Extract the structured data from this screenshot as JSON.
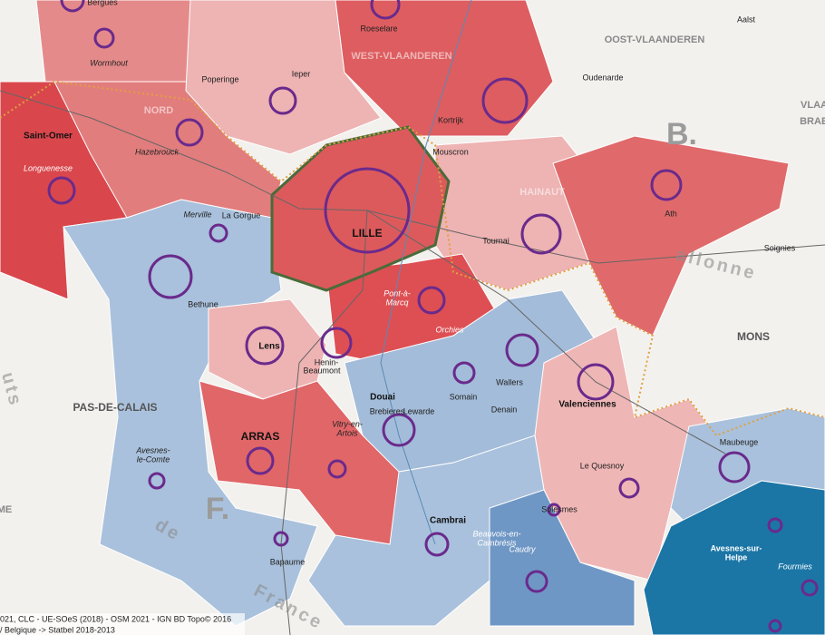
{
  "places": [
    "Bergues",
    "Wormhout",
    "Roeselare",
    "WEST-VLAANDEREN",
    "Aalst",
    "OOST-VLAANDEREN",
    "Oudenarde",
    "Poperinge",
    "Ieper",
    "NORD",
    "Kortrijk",
    "VLAA",
    "BRAB",
    "B.",
    "Saint-Omer",
    "Hazebrouck",
    "Mouscron",
    "Longuenesse",
    "HAINAUT",
    "Ath",
    "Merville",
    "La Gorgue",
    "LILLE",
    "Tournai",
    "Soignies",
    "allonne",
    "Bethune",
    "Pont-à-",
    "Marcq",
    "Orchies",
    "Lens",
    "MONS",
    "Henin-",
    "Beaumont",
    "Wallers",
    "Douai",
    "Somain",
    "Valenciennes",
    "PAS-DE-CALAIS",
    "Lewarde",
    "Denain",
    "Brebieres",
    "Vitry-en-",
    "Artois",
    "ARRAS",
    "Avesnes-",
    "le-Comte",
    "Maubeuge",
    "Le Quesnoy",
    "F.",
    "Solesmes",
    "Cambrai",
    "Beauvois-en-",
    "Cambrésis",
    "Caudry",
    "Avesnes-sur-",
    "Helpe",
    "Fourmies",
    "Bapaume",
    "de",
    "France",
    "uts",
    "ME"
  ],
  "source": [
    "021, CLC - UE-SOeS (2018) -  OSM 2021 - IGN BD Topo© 2016",
    "/ Belgique -> Statbel 2018-2013"
  ]
}
